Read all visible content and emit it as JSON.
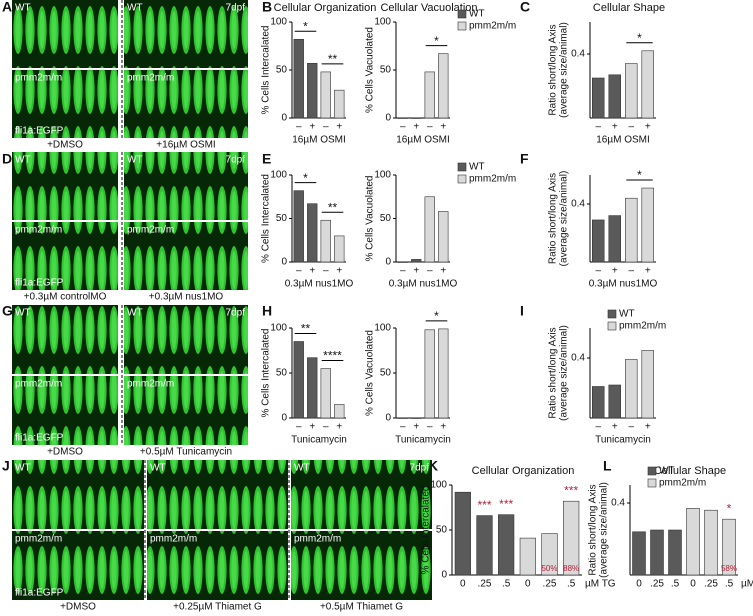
{
  "figure_labels": [
    "A",
    "B",
    "C",
    "D",
    "E",
    "F",
    "G",
    "H",
    "I",
    "J",
    "K",
    "L"
  ],
  "image_rows": [
    {
      "wt": "WT",
      "age": "7dpf",
      "mutant": "pmm2m/m",
      "reporter": "fli1a:EGFP",
      "captions": [
        "+DMSO",
        "+16µM OSMI"
      ]
    },
    {
      "wt": "WT",
      "age": "7dpf",
      "mutant": "pmm2m/m",
      "reporter": "fli1a:EGFP",
      "captions": [
        "+0.3µM controlMO",
        "+0.3µM nus1MO"
      ]
    },
    {
      "wt": "WT",
      "age": "7dpf",
      "mutant": "pmm2m/m",
      "reporter": "fli1a:EGFP",
      "captions": [
        "+DMSO",
        "+0.5µM Tunicamycin"
      ]
    },
    {
      "wt": "WT",
      "age": "7dpf",
      "mutant": "pmm2m/m",
      "reporter": "fli1a:EGFP",
      "captions": [
        "+DMSO",
        "+0.25µM Thiamet G",
        "+0.5µM Thiamet G"
      ]
    }
  ],
  "chart_data": [
    {
      "type": "bar",
      "title": "Cellular Organization",
      "ylabel": [
        "% Cells Intercalated"
      ],
      "xlabel": "16µM OSMI",
      "categories": [
        "–",
        "+",
        "–",
        "+"
      ],
      "series": [
        {
          "color": "#5a5a5a",
          "values": [
            82,
            57,
            null,
            null
          ]
        },
        {
          "color": "#d9d9d9",
          "values": [
            null,
            null,
            48,
            29
          ]
        }
      ],
      "ylim": [
        0,
        100
      ],
      "yticks": [
        0,
        50,
        100
      ],
      "annotations": [
        {
          "text": "*",
          "categories": [
            0,
            1
          ]
        },
        {
          "text": "**",
          "categories": [
            2,
            3
          ]
        }
      ]
    },
    {
      "type": "bar",
      "title": "Cellular Vacuolation",
      "ylabel": [
        "% Cells Vacuolated"
      ],
      "xlabel": "16µM OSMI",
      "categories": [
        "–",
        "+",
        "–",
        "+"
      ],
      "series": [
        {
          "name": "WT",
          "color": "#5a5a5a",
          "values": [
            0,
            0,
            null,
            null
          ]
        },
        {
          "name": "pmm2m/m",
          "color": "#d9d9d9",
          "values": [
            null,
            null,
            48,
            67
          ]
        }
      ],
      "ylim": [
        0,
        100
      ],
      "yticks": [
        0,
        50,
        100
      ],
      "legend": "right",
      "annotations": [
        {
          "text": "*",
          "categories": [
            2,
            3
          ]
        }
      ]
    },
    {
      "type": "bar",
      "title": "Cellular Shape",
      "ylabel": [
        "Ratio short/long Axis",
        "(average size/animal)"
      ],
      "xlabel": "16µM OSMI",
      "categories": [
        "–",
        "+",
        "–",
        "+"
      ],
      "series": [
        {
          "color": "#5a5a5a",
          "values": [
            0.25,
            0.27,
            null,
            null
          ]
        },
        {
          "color": "#d9d9d9",
          "values": [
            null,
            null,
            0.34,
            0.42
          ]
        }
      ],
      "ylim": [
        0,
        0.6
      ],
      "yticks": [
        0.4
      ],
      "annotations": [
        {
          "text": "*",
          "categories": [
            2,
            3
          ]
        }
      ]
    },
    {
      "type": "bar",
      "ylabel": [
        "% Cells Intercalated"
      ],
      "xlabel": "0.3µM nus1MO",
      "categories": [
        "–",
        "+",
        "–",
        "+"
      ],
      "series": [
        {
          "color": "#5a5a5a",
          "values": [
            82,
            67,
            null,
            null
          ]
        },
        {
          "color": "#d9d9d9",
          "values": [
            null,
            null,
            48,
            30
          ]
        }
      ],
      "ylim": [
        0,
        100
      ],
      "yticks": [
        0,
        50,
        100
      ],
      "annotations": [
        {
          "text": "*",
          "categories": [
            0,
            1
          ]
        },
        {
          "text": "**",
          "categories": [
            2,
            3
          ]
        }
      ]
    },
    {
      "type": "bar",
      "ylabel": [
        "% Cells Vacuolated"
      ],
      "xlabel": "0.3µM nus1MO",
      "categories": [
        "–",
        "+",
        "–",
        "+"
      ],
      "series": [
        {
          "name": "WT",
          "color": "#5a5a5a",
          "values": [
            0,
            3,
            null,
            null
          ]
        },
        {
          "name": "pmm2m/m",
          "color": "#d9d9d9",
          "values": [
            null,
            null,
            75,
            58
          ]
        }
      ],
      "ylim": [
        0,
        100
      ],
      "yticks": [
        0,
        50,
        100
      ],
      "legend": "right"
    },
    {
      "type": "bar",
      "ylabel": [
        "Ratio short/long Axis",
        "(average size/animal)"
      ],
      "xlabel": "0.3µM nus1MO",
      "categories": [
        "–",
        "+",
        "–",
        "+"
      ],
      "series": [
        {
          "color": "#5a5a5a",
          "values": [
            0.29,
            0.32,
            null,
            null
          ]
        },
        {
          "color": "#d9d9d9",
          "values": [
            null,
            null,
            0.44,
            0.51
          ]
        }
      ],
      "ylim": [
        0,
        0.6
      ],
      "yticks": [
        0.4
      ],
      "annotations": [
        {
          "text": "*",
          "categories": [
            2,
            3
          ]
        }
      ]
    },
    {
      "type": "bar",
      "ylabel": [
        "% Cells Intercalated"
      ],
      "xlabel": "Tunicamycin",
      "categories": [
        "–",
        "+",
        "–",
        "+"
      ],
      "series": [
        {
          "color": "#5a5a5a",
          "values": [
            85,
            67,
            null,
            null
          ]
        },
        {
          "color": "#d9d9d9",
          "values": [
            null,
            null,
            55,
            15
          ]
        }
      ],
      "ylim": [
        0,
        100
      ],
      "yticks": [
        0,
        50,
        100
      ],
      "annotations": [
        {
          "text": "**",
          "categories": [
            0,
            1
          ]
        },
        {
          "text": "****",
          "categories": [
            2,
            3
          ]
        }
      ]
    },
    {
      "type": "bar",
      "ylabel": [
        "% Cells Vacuolated"
      ],
      "xlabel": "Tunicamycin",
      "categories": [
        "–",
        "+",
        "–",
        "+"
      ],
      "series": [
        {
          "color": "#5a5a5a",
          "values": [
            0,
            0,
            null,
            null
          ]
        },
        {
          "color": "#d9d9d9",
          "values": [
            null,
            null,
            98,
            99
          ]
        }
      ],
      "ylim": [
        0,
        100
      ],
      "yticks": [
        0,
        50,
        100
      ],
      "annotations": [
        {
          "text": "*",
          "categories": [
            2,
            3
          ]
        }
      ]
    },
    {
      "type": "bar",
      "ylabel": [
        "Ratio short/long Axis",
        "(average size/animal)"
      ],
      "xlabel": "Tunicamycin",
      "categories": [
        "–",
        "+",
        "–",
        "+"
      ],
      "series": [
        {
          "name": "WT",
          "color": "#5a5a5a",
          "values": [
            0.21,
            0.22,
            null,
            null
          ]
        },
        {
          "name": "pmm2m/m",
          "color": "#d9d9d9",
          "values": [
            null,
            null,
            0.39,
            0.45
          ]
        }
      ],
      "ylim": [
        0,
        0.6
      ],
      "yticks": [
        0.4
      ],
      "legend": "top-left"
    },
    {
      "type": "bar",
      "title": "Cellular Organization",
      "ylabel": [
        "% Cells Intercalated"
      ],
      "xunit": "µM TG",
      "categories": [
        "0",
        ".25",
        ".5",
        "0",
        ".25",
        ".5"
      ],
      "series": [
        {
          "color": "#5a5a5a",
          "values": [
            92,
            66,
            67,
            null,
            null,
            null
          ]
        },
        {
          "color": "#d9d9d9",
          "values": [
            null,
            null,
            null,
            41,
            46,
            82
          ]
        }
      ],
      "ylim": [
        0,
        100
      ],
      "yticks": [
        0,
        50,
        100
      ],
      "annotations": [
        {
          "text": "***",
          "categories": [
            1
          ],
          "color": "#b0233a"
        },
        {
          "text": "***",
          "categories": [
            2
          ],
          "color": "#b0233a"
        },
        {
          "text": "***",
          "categories": [
            5
          ],
          "color": "#b0233a"
        },
        {
          "text": "50%",
          "categories": [
            4
          ],
          "color": "#b0233a",
          "inside": true
        },
        {
          "text": "88%",
          "categories": [
            5
          ],
          "color": "#b0233a",
          "inside": true
        }
      ]
    },
    {
      "type": "bar",
      "title": "Cellular Shape",
      "ylabel": [
        "Ratio short/long Axis",
        "(average size/animal)"
      ],
      "xunit": "µM TG",
      "categories": [
        "0",
        ".25",
        ".5",
        "0",
        ".25",
        ".5"
      ],
      "series": [
        {
          "name": "WT",
          "color": "#5a5a5a",
          "values": [
            0.24,
            0.25,
            0.25,
            null,
            null,
            null
          ]
        },
        {
          "name": "pmm2m/m",
          "color": "#d9d9d9",
          "values": [
            null,
            null,
            null,
            0.37,
            0.36,
            0.31
          ]
        }
      ],
      "ylim": [
        0,
        0.5
      ],
      "yticks": [
        0.4
      ],
      "legend": "top-left",
      "annotations": [
        {
          "text": "*",
          "categories": [
            5
          ],
          "color": "#b0233a"
        },
        {
          "text": "58%",
          "categories": [
            5
          ],
          "color": "#b0233a",
          "inside": true
        }
      ]
    }
  ]
}
